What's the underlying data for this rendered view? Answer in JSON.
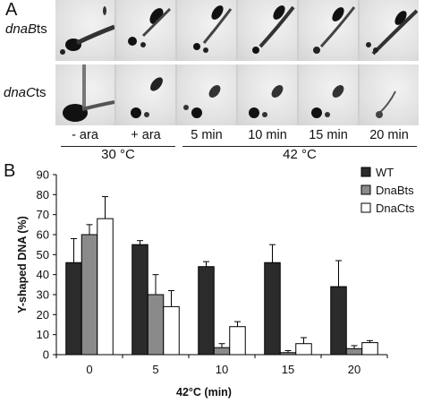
{
  "panel_a": {
    "letter": "A",
    "rows": [
      {
        "label_italic": "dnaB",
        "label_plain": "ts"
      },
      {
        "label_italic": "dnaC",
        "label_plain": "ts"
      }
    ],
    "conditions": [
      "- ara",
      "+ ara",
      "5 min",
      "10 min",
      "15 min",
      "20 min"
    ],
    "groups": [
      "30 °C",
      "42 °C"
    ]
  },
  "panel_b": {
    "letter": "B"
  },
  "chart_data": {
    "type": "bar",
    "categories": [
      "0",
      "5",
      "10",
      "15",
      "20"
    ],
    "xlabel": "42°C (min)",
    "ylabel": "Y-shaped DNA (%)",
    "ylim": [
      0,
      90
    ],
    "yticks": [
      0,
      10,
      20,
      30,
      40,
      50,
      60,
      70,
      80,
      90
    ],
    "legend_position": "top-right",
    "grid": false,
    "series": [
      {
        "name": "WT",
        "color": "#2b2b2b",
        "values": [
          46,
          55,
          44,
          46,
          34
        ],
        "errors": [
          12,
          2,
          2.5,
          9,
          13
        ]
      },
      {
        "name": "DnaBts",
        "color": "#8a8a8a",
        "values": [
          60,
          30,
          3.5,
          1,
          3
        ],
        "errors": [
          5,
          10,
          2,
          1,
          1.5
        ]
      },
      {
        "name": "DnaCts",
        "color": "#ffffff",
        "values": [
          68,
          24,
          14,
          5.5,
          6
        ],
        "errors": [
          11,
          8,
          2.5,
          3,
          1
        ]
      }
    ]
  }
}
